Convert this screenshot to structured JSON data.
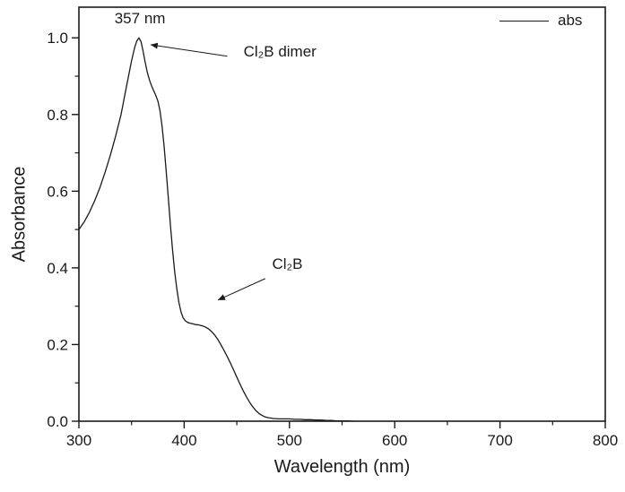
{
  "figure": {
    "background": "#ffffff",
    "line_color": "#1a1a1a"
  },
  "legend": {
    "entries": [
      {
        "label": "abs",
        "marker": "line"
      }
    ]
  },
  "chart_data": {
    "type": "line",
    "title": "",
    "xlabel": "Wavelength (nm)",
    "ylabel": "Absorbance",
    "xlim": [
      300,
      800
    ],
    "ylim": [
      0,
      1.08
    ],
    "xtick_values": [
      300,
      400,
      500,
      600,
      700,
      800
    ],
    "xtick_labels": [
      "300",
      "400",
      "500",
      "600",
      "700",
      "800"
    ],
    "ytick_values": [
      0.0,
      0.2,
      0.4,
      0.6,
      0.8,
      1.0
    ],
    "ytick_labels": [
      "0.0",
      "0.2",
      "0.4",
      "0.6",
      "0.8",
      "1.0"
    ],
    "minor_x_step": 50,
    "minor_y_step": 0.1,
    "grid": false,
    "legend_position": "top-right",
    "series": [
      {
        "name": "abs",
        "color": "#1a1a1a",
        "points": [
          [
            300,
            0.5
          ],
          [
            305,
            0.52
          ],
          [
            310,
            0.545
          ],
          [
            315,
            0.575
          ],
          [
            320,
            0.61
          ],
          [
            325,
            0.65
          ],
          [
            330,
            0.695
          ],
          [
            335,
            0.745
          ],
          [
            340,
            0.8
          ],
          [
            345,
            0.87
          ],
          [
            350,
            0.94
          ],
          [
            353,
            0.975
          ],
          [
            355,
            0.992
          ],
          [
            357,
            1.0
          ],
          [
            359,
            0.99
          ],
          [
            361,
            0.965
          ],
          [
            363,
            0.935
          ],
          [
            365,
            0.91
          ],
          [
            367,
            0.89
          ],
          [
            369,
            0.875
          ],
          [
            371,
            0.862
          ],
          [
            373,
            0.85
          ],
          [
            375,
            0.835
          ],
          [
            377,
            0.81
          ],
          [
            379,
            0.77
          ],
          [
            381,
            0.715
          ],
          [
            383,
            0.65
          ],
          [
            385,
            0.58
          ],
          [
            387,
            0.51
          ],
          [
            389,
            0.445
          ],
          [
            391,
            0.39
          ],
          [
            393,
            0.345
          ],
          [
            395,
            0.31
          ],
          [
            397,
            0.285
          ],
          [
            399,
            0.27
          ],
          [
            401,
            0.262
          ],
          [
            403,
            0.258
          ],
          [
            405,
            0.256
          ],
          [
            408,
            0.254
          ],
          [
            411,
            0.252
          ],
          [
            414,
            0.251
          ],
          [
            417,
            0.249
          ],
          [
            420,
            0.246
          ],
          [
            423,
            0.241
          ],
          [
            426,
            0.234
          ],
          [
            429,
            0.225
          ],
          [
            432,
            0.213
          ],
          [
            435,
            0.199
          ],
          [
            438,
            0.184
          ],
          [
            441,
            0.168
          ],
          [
            444,
            0.151
          ],
          [
            447,
            0.133
          ],
          [
            450,
            0.115
          ],
          [
            453,
            0.097
          ],
          [
            456,
            0.08
          ],
          [
            459,
            0.064
          ],
          [
            462,
            0.05
          ],
          [
            465,
            0.038
          ],
          [
            468,
            0.028
          ],
          [
            471,
            0.02
          ],
          [
            474,
            0.015
          ],
          [
            477,
            0.011
          ],
          [
            480,
            0.009
          ],
          [
            485,
            0.007
          ],
          [
            490,
            0.006
          ],
          [
            495,
            0.006
          ],
          [
            500,
            0.006
          ],
          [
            505,
            0.005
          ],
          [
            510,
            0.005
          ],
          [
            515,
            0.004
          ],
          [
            520,
            0.004
          ],
          [
            525,
            0.003
          ],
          [
            530,
            0.003
          ],
          [
            535,
            0.002
          ],
          [
            540,
            0.002
          ],
          [
            545,
            0.001
          ],
          [
            550,
            0.001
          ],
          [
            555,
            0.001
          ],
          [
            560,
            0.0
          ]
        ]
      }
    ],
    "annotations": [
      {
        "id": "peak-wavelength",
        "text": "357 nm",
        "x": 358,
        "y": 1.05
      },
      {
        "id": "dimer-label",
        "text": "Cl₂B dimer",
        "x": 491,
        "y": 0.963,
        "arrow": {
          "x1": 441,
          "y1": 0.952,
          "x2": 368,
          "y2": 0.982
        }
      },
      {
        "id": "monomer-label",
        "text": "Cl₂B",
        "x": 498,
        "y": 0.408,
        "arrow": {
          "x1": 477,
          "y1": 0.372,
          "x2": 432,
          "y2": 0.316
        }
      }
    ]
  }
}
